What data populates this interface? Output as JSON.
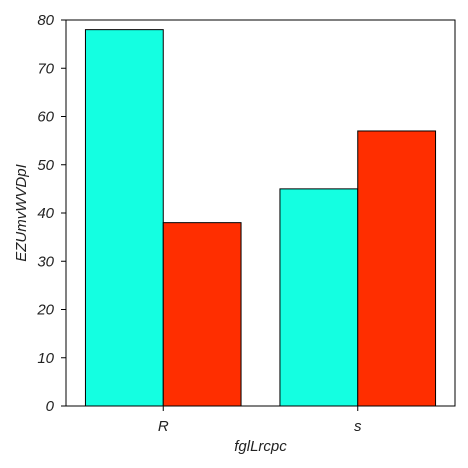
{
  "chart_data": {
    "type": "bar",
    "categories": [
      "R",
      "s"
    ],
    "series": [
      {
        "values": [
          78,
          45
        ],
        "color": "#14ffe1"
      },
      {
        "values": [
          38,
          57
        ],
        "color": "#ff2e00"
      }
    ],
    "xlabel": "fglLrcpc",
    "ylabel": "EZUmvWVDpI",
    "ylim": [
      0,
      80
    ],
    "yticks": [
      0,
      10,
      20,
      30,
      40,
      50,
      60,
      70,
      80
    ],
    "grid": false,
    "legend": "none"
  }
}
